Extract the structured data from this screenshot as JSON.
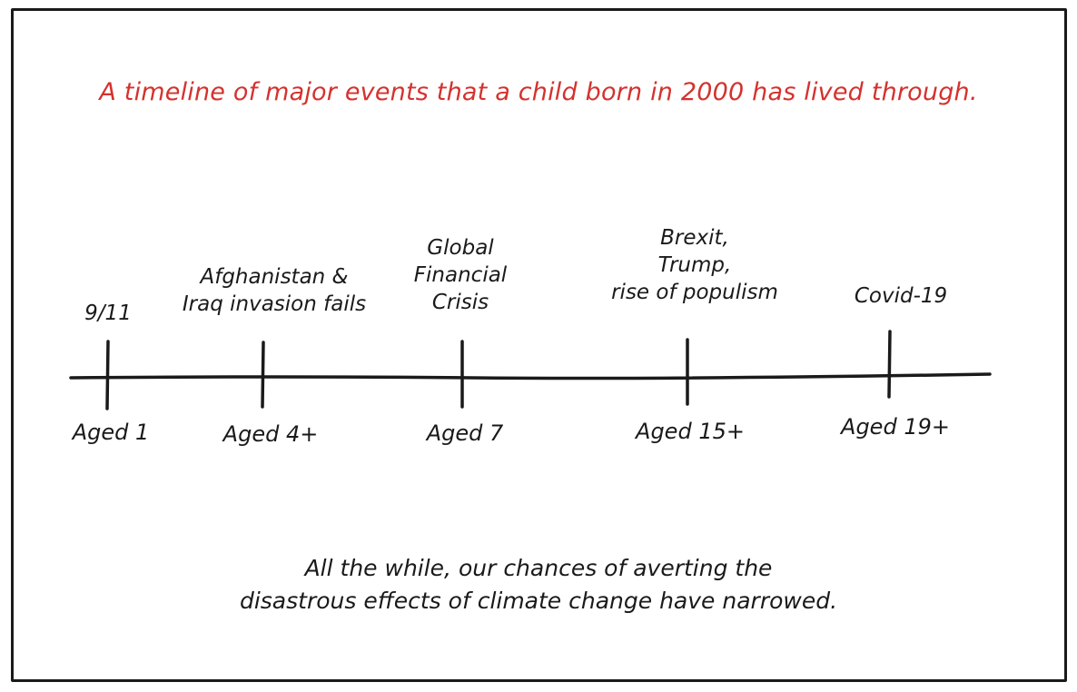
{
  "title": "A timeline of major events that a child born in 2000 has lived through.",
  "events": [
    {
      "label_lines": [
        "9/11"
      ],
      "age": "Aged 1"
    },
    {
      "label_lines": [
        "Afghanistan &",
        "Iraq invasion fails"
      ],
      "age": "Aged 4+"
    },
    {
      "label_lines": [
        "Global",
        "Financial",
        "Crisis"
      ],
      "age": "Aged 7"
    },
    {
      "label_lines": [
        "Brexit,",
        "Trump,",
        "rise of populism"
      ],
      "age": "Aged 15+"
    },
    {
      "label_lines": [
        "Covid-19"
      ],
      "age": "Aged 19+"
    }
  ],
  "footer": {
    "line1": "All the while, our chances of averting the",
    "line2": "disastrous effects of climate change have narrowed."
  },
  "colors": {
    "title": "#d4322e",
    "ink": "#1a1a1a"
  }
}
